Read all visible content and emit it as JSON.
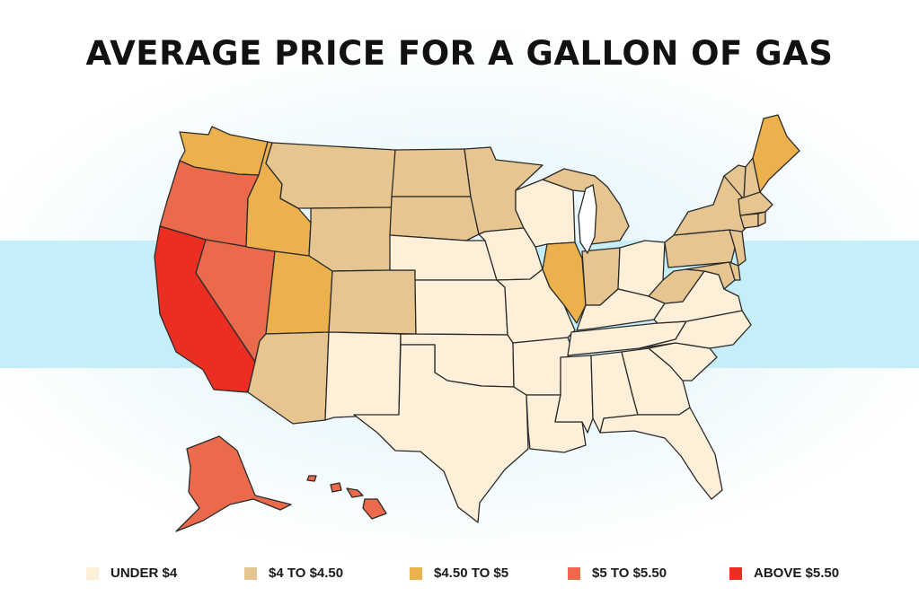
{
  "title": "AVERAGE PRICE FOR A GALLON OF GAS",
  "colors": {
    "under_4": "#fdefd8",
    "4_to_4_50": "#e6c591",
    "4_50_to_5": "#ecb14c",
    "5_to_5_50": "#ec6a4c",
    "above_5_50": "#ea2f22",
    "lake": "#ffffff"
  },
  "legend": [
    {
      "label": "UNDER $4",
      "category": "under_4"
    },
    {
      "label": "$4 TO $4.50",
      "category": "4_to_4_50"
    },
    {
      "label": "$4.50 TO $5",
      "category": "4_50_to_5"
    },
    {
      "label": "$5 TO $5.50",
      "category": "5_to_5_50"
    },
    {
      "label": "ABOVE $5.50",
      "category": "above_5_50"
    }
  ],
  "states": {
    "WA": "4_50_to_5",
    "OR": "5_to_5_50",
    "CA": "above_5_50",
    "NV": "5_to_5_50",
    "ID": "4_50_to_5",
    "UT": "4_50_to_5",
    "AZ": "4_to_4_50",
    "MT": "4_to_4_50",
    "WY": "4_to_4_50",
    "CO": "4_to_4_50",
    "NM": "under_4",
    "ND": "4_to_4_50",
    "SD": "4_to_4_50",
    "NE": "under_4",
    "KS": "under_4",
    "OK": "under_4",
    "TX": "under_4",
    "MN": "4_to_4_50",
    "IA": "under_4",
    "MO": "under_4",
    "AR": "under_4",
    "LA": "under_4",
    "WI": "under_4",
    "IL": "4_50_to_5",
    "MI": "4_to_4_50",
    "IN": "4_to_4_50",
    "OH": "under_4",
    "KY": "under_4",
    "TN": "under_4",
    "MS": "under_4",
    "AL": "under_4",
    "GA": "under_4",
    "FL": "under_4",
    "SC": "under_4",
    "NC": "under_4",
    "VA": "under_4",
    "WV": "4_to_4_50",
    "MD": "4_to_4_50",
    "DE": "4_to_4_50",
    "PA": "4_to_4_50",
    "NJ": "4_to_4_50",
    "NY": "4_to_4_50",
    "CT": "4_to_4_50",
    "RI": "4_to_4_50",
    "MA": "4_to_4_50",
    "VT": "4_to_4_50",
    "NH": "4_to_4_50",
    "ME": "4_50_to_5",
    "AK": "5_to_5_50",
    "HI": "5_to_5_50"
  }
}
